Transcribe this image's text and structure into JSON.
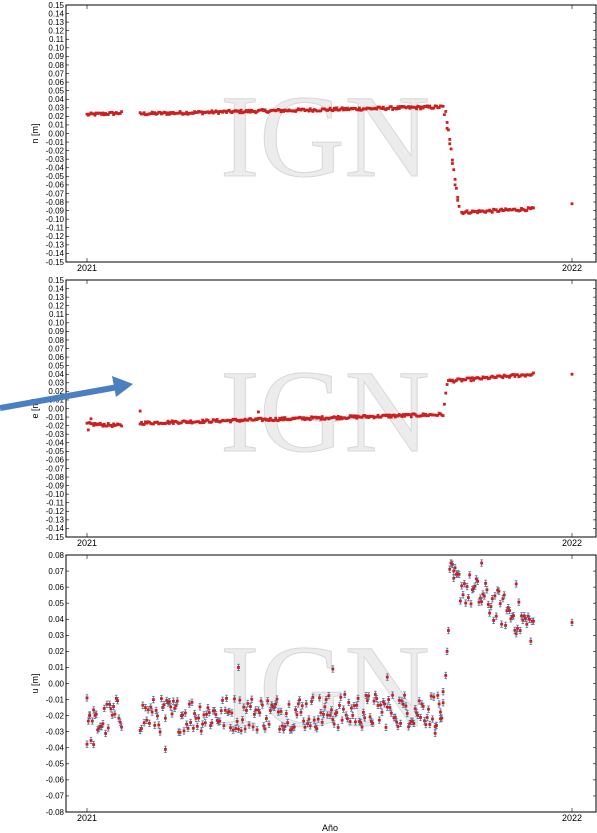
{
  "watermark": "IGN",
  "colors": {
    "point": "#cc1f1f",
    "errorbar": "#4a6fa5",
    "arrow": "#4a7fc1",
    "axis": "#000000"
  },
  "chart_data": [
    {
      "type": "scatter",
      "ylabel": "n [m]",
      "xlim": [
        "2021-01-01",
        "2022-01-01"
      ],
      "ylim": [
        -0.15,
        0.15
      ],
      "x_ticks": [
        "2021",
        "2022"
      ],
      "y_ticks": [
        "0.15",
        "0.14",
        "0.13",
        "0.12",
        "0.11",
        "0.10",
        "0.09",
        "0.08",
        "0.07",
        "0.06",
        "0.05",
        "0.04",
        "0.03",
        "0.02",
        "0.01",
        "0.00",
        "-0.01",
        "-0.02",
        "-0.03",
        "-0.04",
        "-0.05",
        "-0.06",
        "-0.07",
        "-0.08",
        "-0.09",
        "-0.10",
        "-0.11",
        "-0.12",
        "-0.13",
        "-0.14",
        "-0.15"
      ],
      "segments": [
        {
          "x_start": "2021-01-01",
          "x_end": "2021-01-27",
          "y_start": 0.022,
          "y_end": 0.024
        },
        {
          "x_start": "2021-02-10",
          "x_end": "2021-09-26",
          "y_start": 0.023,
          "y_end": 0.031
        },
        {
          "x_start": "2021-09-28",
          "x_end": "2021-10-08",
          "y_start": 0.025,
          "y_end": -0.085
        },
        {
          "x_start": "2021-10-10",
          "x_end": "2021-12-03",
          "y_start": -0.092,
          "y_end": -0.088
        }
      ],
      "points": [
        {
          "x": "2021-09-27",
          "y": 0.022
        },
        {
          "x": "2021-09-29",
          "y": 0.006
        },
        {
          "x": "2021-10-01",
          "y": -0.012
        },
        {
          "x": "2021-10-03",
          "y": -0.035
        },
        {
          "x": "2021-10-05",
          "y": -0.06
        },
        {
          "x": "2021-10-07",
          "y": -0.078
        },
        {
          "x": "2022-01-01",
          "y": -0.082
        }
      ]
    },
    {
      "type": "scatter",
      "ylabel": "e [m]",
      "xlim": [
        "2021-01-01",
        "2022-01-01"
      ],
      "ylim": [
        -0.15,
        0.15
      ],
      "x_ticks": [
        "2021",
        "2022"
      ],
      "y_ticks": [
        "0.15",
        "0.14",
        "0.13",
        "0.12",
        "0.11",
        "0.10",
        "0.09",
        "0.08",
        "0.07",
        "0.06",
        "0.05",
        "0.04",
        "0.03",
        "0.02",
        "0.01",
        "0.00",
        "-0.01",
        "-0.02",
        "-0.03",
        "-0.04",
        "-0.05",
        "-0.06",
        "-0.07",
        "-0.08",
        "-0.09",
        "-0.10",
        "-0.11",
        "-0.12",
        "-0.13",
        "-0.14",
        "-0.15"
      ],
      "segments": [
        {
          "x_start": "2021-01-01",
          "x_end": "2021-01-27",
          "y_start": -0.018,
          "y_end": -0.02
        },
        {
          "x_start": "2021-02-10",
          "x_end": "2021-09-26",
          "y_start": -0.017,
          "y_end": -0.007
        },
        {
          "x_start": "2021-09-30",
          "x_end": "2021-12-03",
          "y_start": 0.032,
          "y_end": 0.04
        }
      ],
      "points": [
        {
          "x": "2021-01-02",
          "y": -0.025
        },
        {
          "x": "2021-01-04",
          "y": -0.012
        },
        {
          "x": "2021-02-10",
          "y": -0.003
        },
        {
          "x": "2021-05-10",
          "y": -0.004
        },
        {
          "x": "2021-09-27",
          "y": 0.005
        },
        {
          "x": "2021-09-28",
          "y": 0.018
        },
        {
          "x": "2021-09-29",
          "y": 0.028
        },
        {
          "x": "2022-01-01",
          "y": 0.04
        }
      ]
    },
    {
      "type": "scatter",
      "ylabel": "u [m]",
      "xlabel": "Año",
      "xlim": [
        "2021-01-01",
        "2022-01-01"
      ],
      "ylim": [
        -0.08,
        0.08
      ],
      "x_ticks": [
        "2021",
        "2022"
      ],
      "y_ticks": [
        "0.08",
        "0.07",
        "0.06",
        "0.05",
        "0.04",
        "0.03",
        "0.02",
        "0.01",
        "0.00",
        "-0.01",
        "-0.02",
        "-0.03",
        "-0.04",
        "-0.05",
        "-0.06",
        "-0.07",
        "-0.08"
      ],
      "error_bars": true,
      "segments": [
        {
          "x_start": "2021-01-01",
          "x_end": "2021-01-27",
          "y_start": -0.028,
          "y_end": -0.018
        },
        {
          "x_start": "2021-02-10",
          "x_end": "2021-09-26",
          "y_start": -0.02,
          "y_end": -0.016
        },
        {
          "x_start": "2021-10-01",
          "x_end": "2021-12-03",
          "y_start": 0.065,
          "y_end": 0.035
        }
      ],
      "points": [
        {
          "x": "2021-01-01",
          "y": -0.009
        },
        {
          "x": "2021-01-03",
          "y": -0.02
        },
        {
          "x": "2021-01-06",
          "y": -0.038
        },
        {
          "x": "2021-04-25",
          "y": 0.01
        },
        {
          "x": "2021-03-01",
          "y": -0.041
        },
        {
          "x": "2021-07-05",
          "y": 0.009
        },
        {
          "x": "2021-08-15",
          "y": 0.004
        },
        {
          "x": "2021-09-20",
          "y": -0.031
        },
        {
          "x": "2021-09-24",
          "y": -0.022
        },
        {
          "x": "2021-09-26",
          "y": -0.012
        },
        {
          "x": "2021-09-28",
          "y": 0.005
        },
        {
          "x": "2021-09-29",
          "y": 0.02
        },
        {
          "x": "2021-09-30",
          "y": 0.033
        },
        {
          "x": "2021-10-02",
          "y": 0.075
        },
        {
          "x": "2021-10-04",
          "y": 0.07
        },
        {
          "x": "2021-10-25",
          "y": 0.075
        },
        {
          "x": "2021-11-20",
          "y": 0.062
        },
        {
          "x": "2022-01-01",
          "y": 0.038
        }
      ]
    }
  ]
}
